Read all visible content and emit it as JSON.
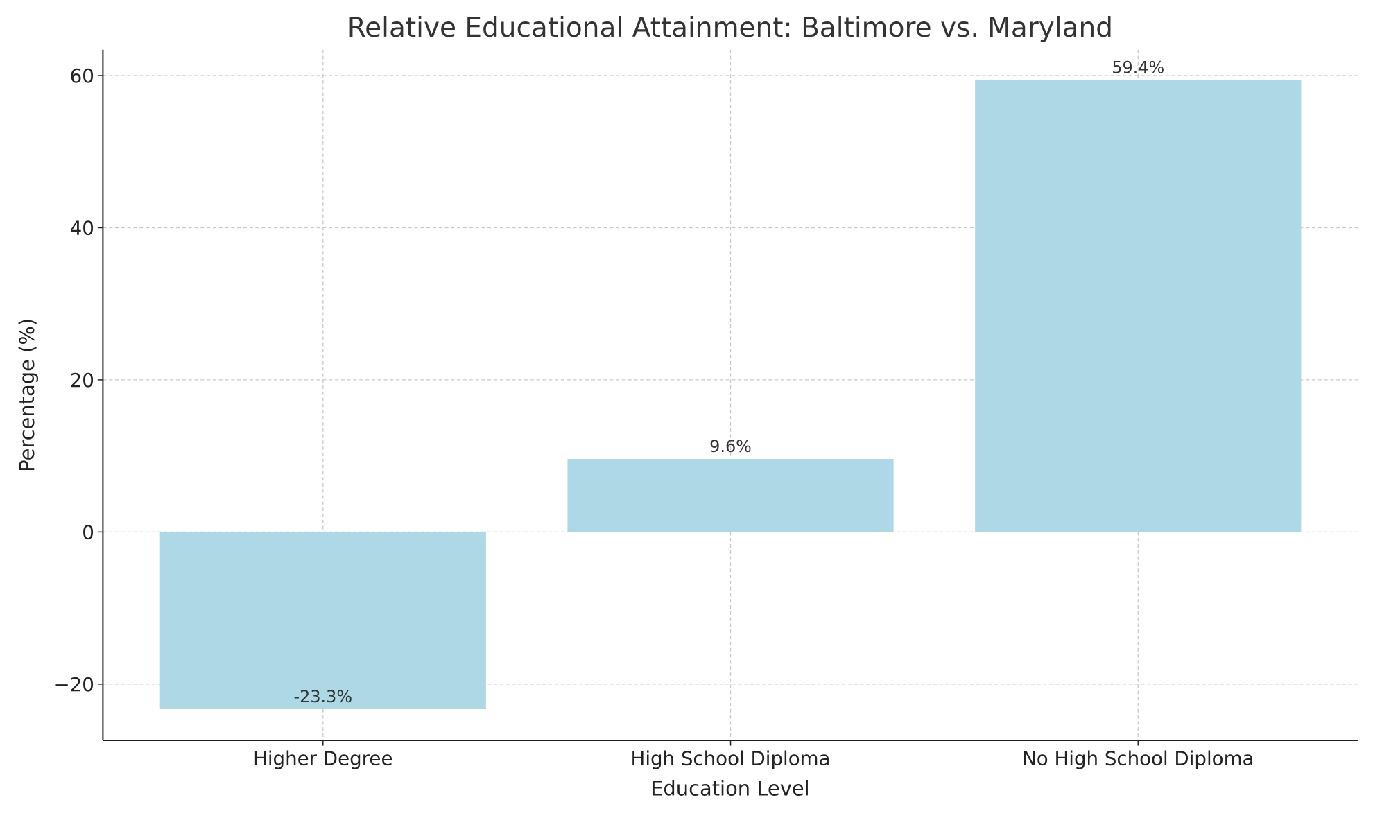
{
  "chart_data": {
    "type": "bar",
    "title": "Relative Educational Attainment: Baltimore vs. Maryland",
    "xlabel": "Education Level",
    "ylabel": "Percentage (%)",
    "categories": [
      "Higher Degree",
      "High School Diploma",
      "No High School Diploma"
    ],
    "values": [
      -23.3,
      9.6,
      59.4
    ],
    "data_labels": [
      "-23.3%",
      "9.6%",
      "59.4%"
    ],
    "ylim": [
      -27.4,
      63.4
    ],
    "yticks": [
      -20,
      0,
      20,
      40,
      60
    ],
    "ytick_labels": [
      "−20",
      "0",
      "20",
      "40",
      "60"
    ],
    "grid": true,
    "bar_color": "#add8e6",
    "grid_color": "#c8c8c8"
  }
}
